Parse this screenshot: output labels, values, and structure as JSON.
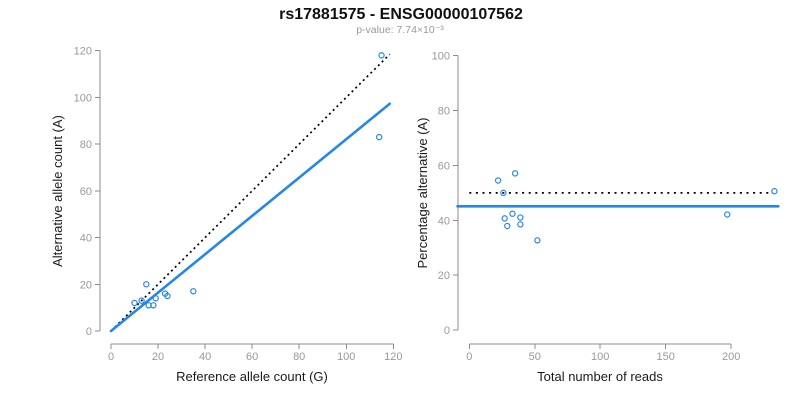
{
  "header": {
    "title": "rs17881575 - ENSG00000107562",
    "subtitle": "p-value: 7.74×10⁻³"
  },
  "colors": {
    "accent_blue": "#2787E6",
    "line_black": "#000000",
    "axis_gray": "#8C8C8C",
    "tick_label_gray": "#999999",
    "axis_title_black": "#1A1A1A",
    "subtitle_gray": "#9A9A9A"
  },
  "chart_data": [
    {
      "type": "scatter",
      "title": "rs17881575 - ENSG00000107562",
      "subtitle": "p-value: 7.74×10⁻³",
      "xlabel": "Reference allele count (G)",
      "ylabel": "Alternative allele count (A)",
      "xlim": [
        0,
        120
      ],
      "ylim": [
        0,
        120
      ],
      "x_ticks": [
        0,
        20,
        40,
        60,
        80,
        100,
        120
      ],
      "y_ticks": [
        0,
        20,
        40,
        60,
        80,
        100,
        120
      ],
      "grid": false,
      "points": [
        [
          10,
          12
        ],
        [
          13,
          13
        ],
        [
          15,
          20
        ],
        [
          16,
          11
        ],
        [
          18,
          11
        ],
        [
          19,
          14
        ],
        [
          23,
          16
        ],
        [
          24,
          15
        ],
        [
          35,
          17
        ],
        [
          114,
          83
        ],
        [
          115,
          118
        ]
      ],
      "lines": [
        {
          "name": "identity-line",
          "style": "dotted",
          "color": "#000000",
          "slope": 1,
          "from": [
            0,
            0
          ],
          "to": [
            118.5,
            118.5
          ]
        },
        {
          "name": "fit-line",
          "style": "solid",
          "color": "#2787E6",
          "slope": 0.821,
          "from": [
            0,
            0
          ],
          "to": [
            118.5,
            97.3
          ]
        }
      ]
    },
    {
      "type": "scatter",
      "xlabel": "Total number of reads",
      "ylabel": "Percentage alternative (A)",
      "xlim": [
        0,
        233
      ],
      "ylim": [
        0,
        100
      ],
      "x_ticks": [
        0,
        50,
        100,
        150,
        200
      ],
      "y_ticks": [
        0,
        20,
        40,
        60,
        80,
        100
      ],
      "grid": false,
      "points": [
        [
          22,
          54.5
        ],
        [
          26,
          50.0
        ],
        [
          27,
          40.7
        ],
        [
          29,
          37.9
        ],
        [
          33,
          42.4
        ],
        [
          35,
          57.1
        ],
        [
          39,
          41.0
        ],
        [
          39,
          38.5
        ],
        [
          52,
          32.7
        ],
        [
          197,
          42.1
        ],
        [
          233,
          50.6
        ]
      ],
      "lines": [
        {
          "name": "expected-50pct-line",
          "style": "dotted",
          "color": "#000000",
          "value": 50,
          "from": [
            0,
            50
          ],
          "to": [
            232,
            50
          ]
        },
        {
          "name": "fit-line",
          "style": "solid",
          "color": "#2787E6",
          "value": 45.1,
          "from": [
            -9,
            45.1
          ],
          "to": [
            236,
            45.1
          ]
        }
      ]
    }
  ]
}
